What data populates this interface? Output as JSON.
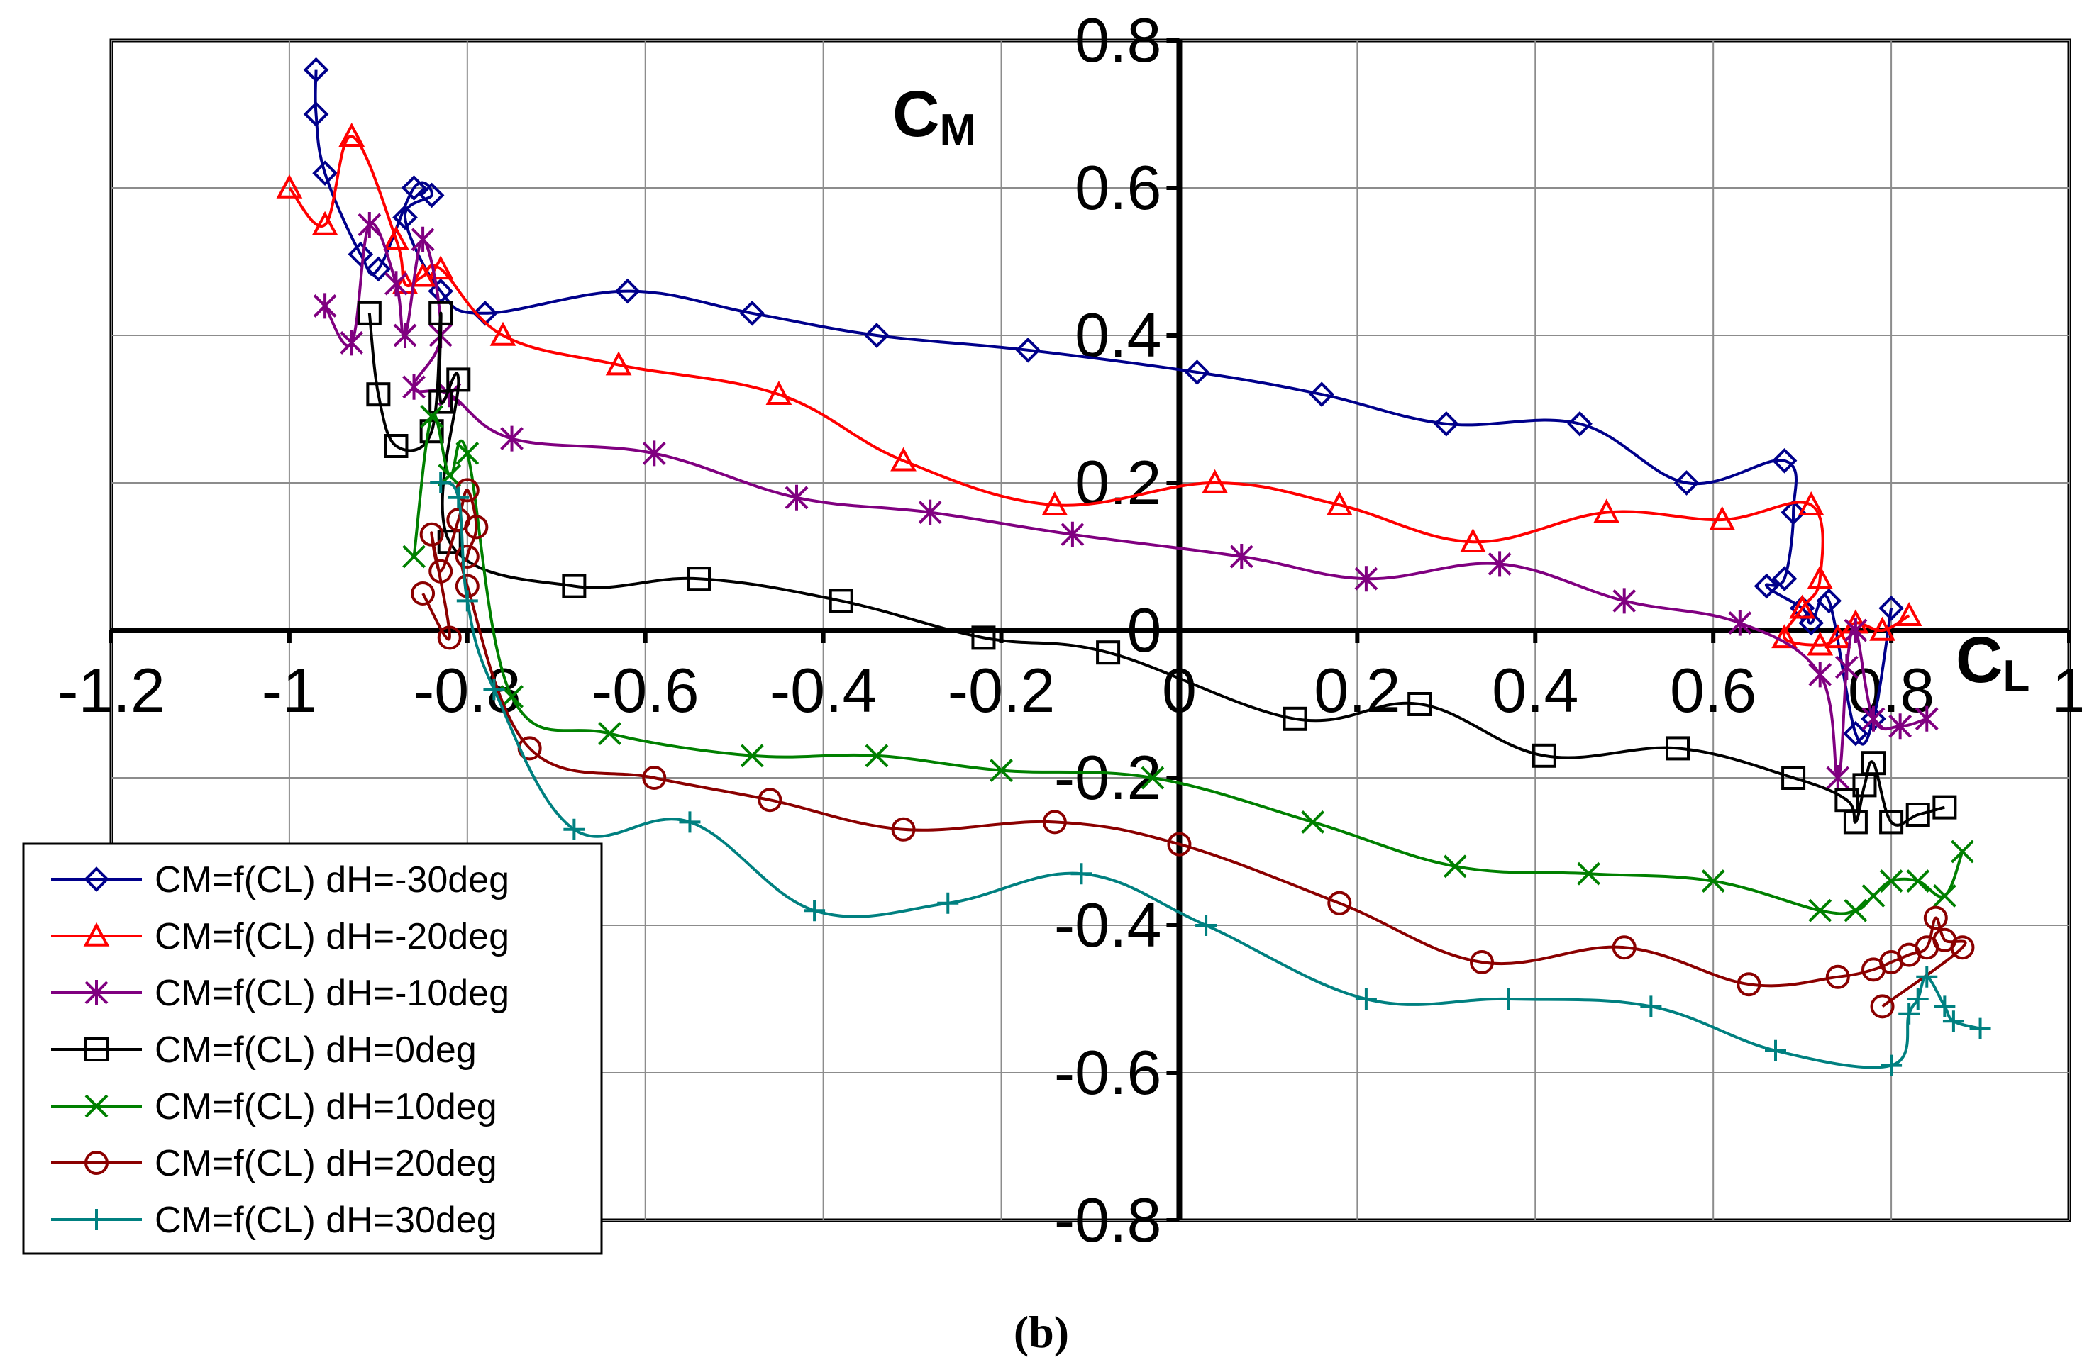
{
  "chart_data": {
    "type": "line",
    "title": "",
    "caption": "(b)",
    "xlabel_main": "C",
    "xlabel_sub": "L",
    "ylabel_main": "C",
    "ylabel_sub": "M",
    "xlim": [
      -1.2,
      1.0
    ],
    "ylim": [
      -0.8,
      0.8
    ],
    "xticks": [
      -1.2,
      -1,
      -0.8,
      -0.6,
      -0.4,
      -0.2,
      0,
      0.2,
      0.4,
      0.6,
      0.8,
      1
    ],
    "yticks": [
      -0.8,
      -0.6,
      -0.4,
      -0.2,
      0,
      0.2,
      0.4,
      0.6,
      0.8
    ],
    "xtick_labels": [
      "-1.2",
      "-1",
      "-0.8",
      "-0.6",
      "-0.4",
      "-0.2",
      "0",
      "0.2",
      "0.4",
      "0.6",
      "0.8",
      "1"
    ],
    "ytick_labels": [
      "-0.8",
      "-0.6",
      "-0.4",
      "-0.2",
      "0",
      "0.2",
      "0.4",
      "0.6",
      "0.8"
    ],
    "grid": true,
    "legend_position": "bottom-left",
    "series": [
      {
        "name": "CM=f(CL) dH=-30deg",
        "color": "#00008b",
        "marker": "diamond",
        "points": [
          [
            -0.97,
            0.76
          ],
          [
            -0.97,
            0.7
          ],
          [
            -0.96,
            0.62
          ],
          [
            -0.92,
            0.51
          ],
          [
            -0.9,
            0.49
          ],
          [
            -0.86,
            0.6
          ],
          [
            -0.84,
            0.59
          ],
          [
            -0.87,
            0.56
          ],
          [
            -0.83,
            0.46
          ],
          [
            -0.78,
            0.43
          ],
          [
            -0.62,
            0.46
          ],
          [
            -0.48,
            0.43
          ],
          [
            -0.34,
            0.4
          ],
          [
            -0.17,
            0.38
          ],
          [
            0.02,
            0.35
          ],
          [
            0.16,
            0.32
          ],
          [
            0.3,
            0.28
          ],
          [
            0.45,
            0.28
          ],
          [
            0.57,
            0.2
          ],
          [
            0.68,
            0.23
          ],
          [
            0.69,
            0.16
          ],
          [
            0.68,
            0.07
          ],
          [
            0.66,
            0.06
          ],
          [
            0.7,
            0.03
          ],
          [
            0.71,
            0.01
          ],
          [
            0.73,
            0.04
          ],
          [
            0.76,
            -0.14
          ],
          [
            0.78,
            -0.12
          ],
          [
            0.8,
            0.03
          ]
        ]
      },
      {
        "name": "CM=f(CL) dH=-20deg",
        "color": "#ff0000",
        "marker": "triangle",
        "points": [
          [
            -1.0,
            0.6
          ],
          [
            -0.96,
            0.55
          ],
          [
            -0.93,
            0.67
          ],
          [
            -0.88,
            0.53
          ],
          [
            -0.87,
            0.47
          ],
          [
            -0.85,
            0.48
          ],
          [
            -0.83,
            0.49
          ],
          [
            -0.76,
            0.4
          ],
          [
            -0.63,
            0.36
          ],
          [
            -0.45,
            0.32
          ],
          [
            -0.31,
            0.23
          ],
          [
            -0.14,
            0.17
          ],
          [
            0.04,
            0.2
          ],
          [
            0.18,
            0.17
          ],
          [
            0.33,
            0.12
          ],
          [
            0.48,
            0.16
          ],
          [
            0.61,
            0.15
          ],
          [
            0.71,
            0.17
          ],
          [
            0.72,
            0.07
          ],
          [
            0.7,
            0.03
          ],
          [
            0.68,
            -0.01
          ],
          [
            0.72,
            -0.02
          ],
          [
            0.74,
            -0.01
          ],
          [
            0.76,
            0.01
          ],
          [
            0.79,
            0.0
          ],
          [
            0.82,
            0.02
          ]
        ]
      },
      {
        "name": "CM=f(CL) dH=-10deg",
        "color": "#800080",
        "marker": "star",
        "points": [
          [
            -0.96,
            0.44
          ],
          [
            -0.93,
            0.39
          ],
          [
            -0.91,
            0.55
          ],
          [
            -0.88,
            0.47
          ],
          [
            -0.87,
            0.4
          ],
          [
            -0.85,
            0.53
          ],
          [
            -0.83,
            0.4
          ],
          [
            -0.86,
            0.33
          ],
          [
            -0.82,
            0.32
          ],
          [
            -0.75,
            0.26
          ],
          [
            -0.59,
            0.24
          ],
          [
            -0.43,
            0.18
          ],
          [
            -0.28,
            0.16
          ],
          [
            -0.12,
            0.13
          ],
          [
            0.07,
            0.1
          ],
          [
            0.21,
            0.07
          ],
          [
            0.36,
            0.09
          ],
          [
            0.5,
            0.04
          ],
          [
            0.63,
            0.01
          ],
          [
            0.72,
            -0.06
          ],
          [
            0.74,
            -0.2
          ],
          [
            0.75,
            -0.05
          ],
          [
            0.76,
            0.0
          ],
          [
            0.78,
            -0.12
          ],
          [
            0.81,
            -0.13
          ],
          [
            0.84,
            -0.12
          ]
        ]
      },
      {
        "name": "CM=f(CL) dH=0deg",
        "color": "#000000",
        "marker": "square",
        "points": [
          [
            -0.91,
            0.43
          ],
          [
            -0.9,
            0.32
          ],
          [
            -0.88,
            0.25
          ],
          [
            -0.84,
            0.27
          ],
          [
            -0.83,
            0.43
          ],
          [
            -0.83,
            0.31
          ],
          [
            -0.81,
            0.34
          ],
          [
            -0.82,
            0.12
          ],
          [
            -0.68,
            0.06
          ],
          [
            -0.54,
            0.07
          ],
          [
            -0.38,
            0.04
          ],
          [
            -0.22,
            -0.01
          ],
          [
            -0.08,
            -0.03
          ],
          [
            0.13,
            -0.12
          ],
          [
            0.27,
            -0.1
          ],
          [
            0.41,
            -0.17
          ],
          [
            0.56,
            -0.16
          ],
          [
            0.69,
            -0.2
          ],
          [
            0.75,
            -0.23
          ],
          [
            0.76,
            -0.26
          ],
          [
            0.77,
            -0.21
          ],
          [
            0.78,
            -0.18
          ],
          [
            0.8,
            -0.26
          ],
          [
            0.83,
            -0.25
          ],
          [
            0.86,
            -0.24
          ]
        ]
      },
      {
        "name": "CM=f(CL) dH=10deg",
        "color": "#008000",
        "marker": "x",
        "points": [
          [
            -0.86,
            0.1
          ],
          [
            -0.84,
            0.29
          ],
          [
            -0.82,
            0.21
          ],
          [
            -0.8,
            0.24
          ],
          [
            -0.75,
            -0.09
          ],
          [
            -0.64,
            -0.14
          ],
          [
            -0.48,
            -0.17
          ],
          [
            -0.34,
            -0.17
          ],
          [
            -0.2,
            -0.19
          ],
          [
            -0.03,
            -0.2
          ],
          [
            0.15,
            -0.26
          ],
          [
            0.31,
            -0.32
          ],
          [
            0.46,
            -0.33
          ],
          [
            0.6,
            -0.34
          ],
          [
            0.72,
            -0.38
          ],
          [
            0.76,
            -0.38
          ],
          [
            0.78,
            -0.36
          ],
          [
            0.8,
            -0.34
          ],
          [
            0.83,
            -0.34
          ],
          [
            0.86,
            -0.36
          ],
          [
            0.88,
            -0.3
          ]
        ]
      },
      {
        "name": "CM=f(CL) dH=20deg",
        "color": "#8b0000",
        "marker": "circle",
        "points": [
          [
            -0.85,
            0.05
          ],
          [
            -0.82,
            -0.01
          ],
          [
            -0.84,
            0.13
          ],
          [
            -0.83,
            0.08
          ],
          [
            -0.81,
            0.15
          ],
          [
            -0.8,
            0.19
          ],
          [
            -0.79,
            0.14
          ],
          [
            -0.8,
            0.1
          ],
          [
            -0.8,
            0.06
          ],
          [
            -0.73,
            -0.16
          ],
          [
            -0.59,
            -0.2
          ],
          [
            -0.46,
            -0.23
          ],
          [
            -0.31,
            -0.27
          ],
          [
            -0.14,
            -0.26
          ],
          [
            0.0,
            -0.29
          ],
          [
            0.18,
            -0.37
          ],
          [
            0.34,
            -0.45
          ],
          [
            0.5,
            -0.43
          ],
          [
            0.64,
            -0.48
          ],
          [
            0.74,
            -0.47
          ],
          [
            0.78,
            -0.46
          ],
          [
            0.8,
            -0.45
          ],
          [
            0.82,
            -0.44
          ],
          [
            0.84,
            -0.43
          ],
          [
            0.85,
            -0.39
          ],
          [
            0.86,
            -0.42
          ],
          [
            0.88,
            -0.43
          ],
          [
            0.79,
            -0.51
          ]
        ]
      },
      {
        "name": "CM=f(CL) dH=30deg",
        "color": "#008080",
        "marker": "plus",
        "points": [
          [
            -0.83,
            0.2
          ],
          [
            -0.81,
            0.18
          ],
          [
            -0.8,
            0.04
          ],
          [
            -0.77,
            -0.08
          ],
          [
            -0.68,
            -0.27
          ],
          [
            -0.55,
            -0.26
          ],
          [
            -0.41,
            -0.38
          ],
          [
            -0.26,
            -0.37
          ],
          [
            -0.11,
            -0.33
          ],
          [
            0.03,
            -0.4
          ],
          [
            0.21,
            -0.5
          ],
          [
            0.37,
            -0.5
          ],
          [
            0.53,
            -0.51
          ],
          [
            0.67,
            -0.57
          ],
          [
            0.8,
            -0.59
          ],
          [
            0.82,
            -0.52
          ],
          [
            0.83,
            -0.5
          ],
          [
            0.84,
            -0.47
          ],
          [
            0.86,
            -0.51
          ],
          [
            0.87,
            -0.53
          ],
          [
            0.9,
            -0.54
          ]
        ]
      }
    ]
  }
}
